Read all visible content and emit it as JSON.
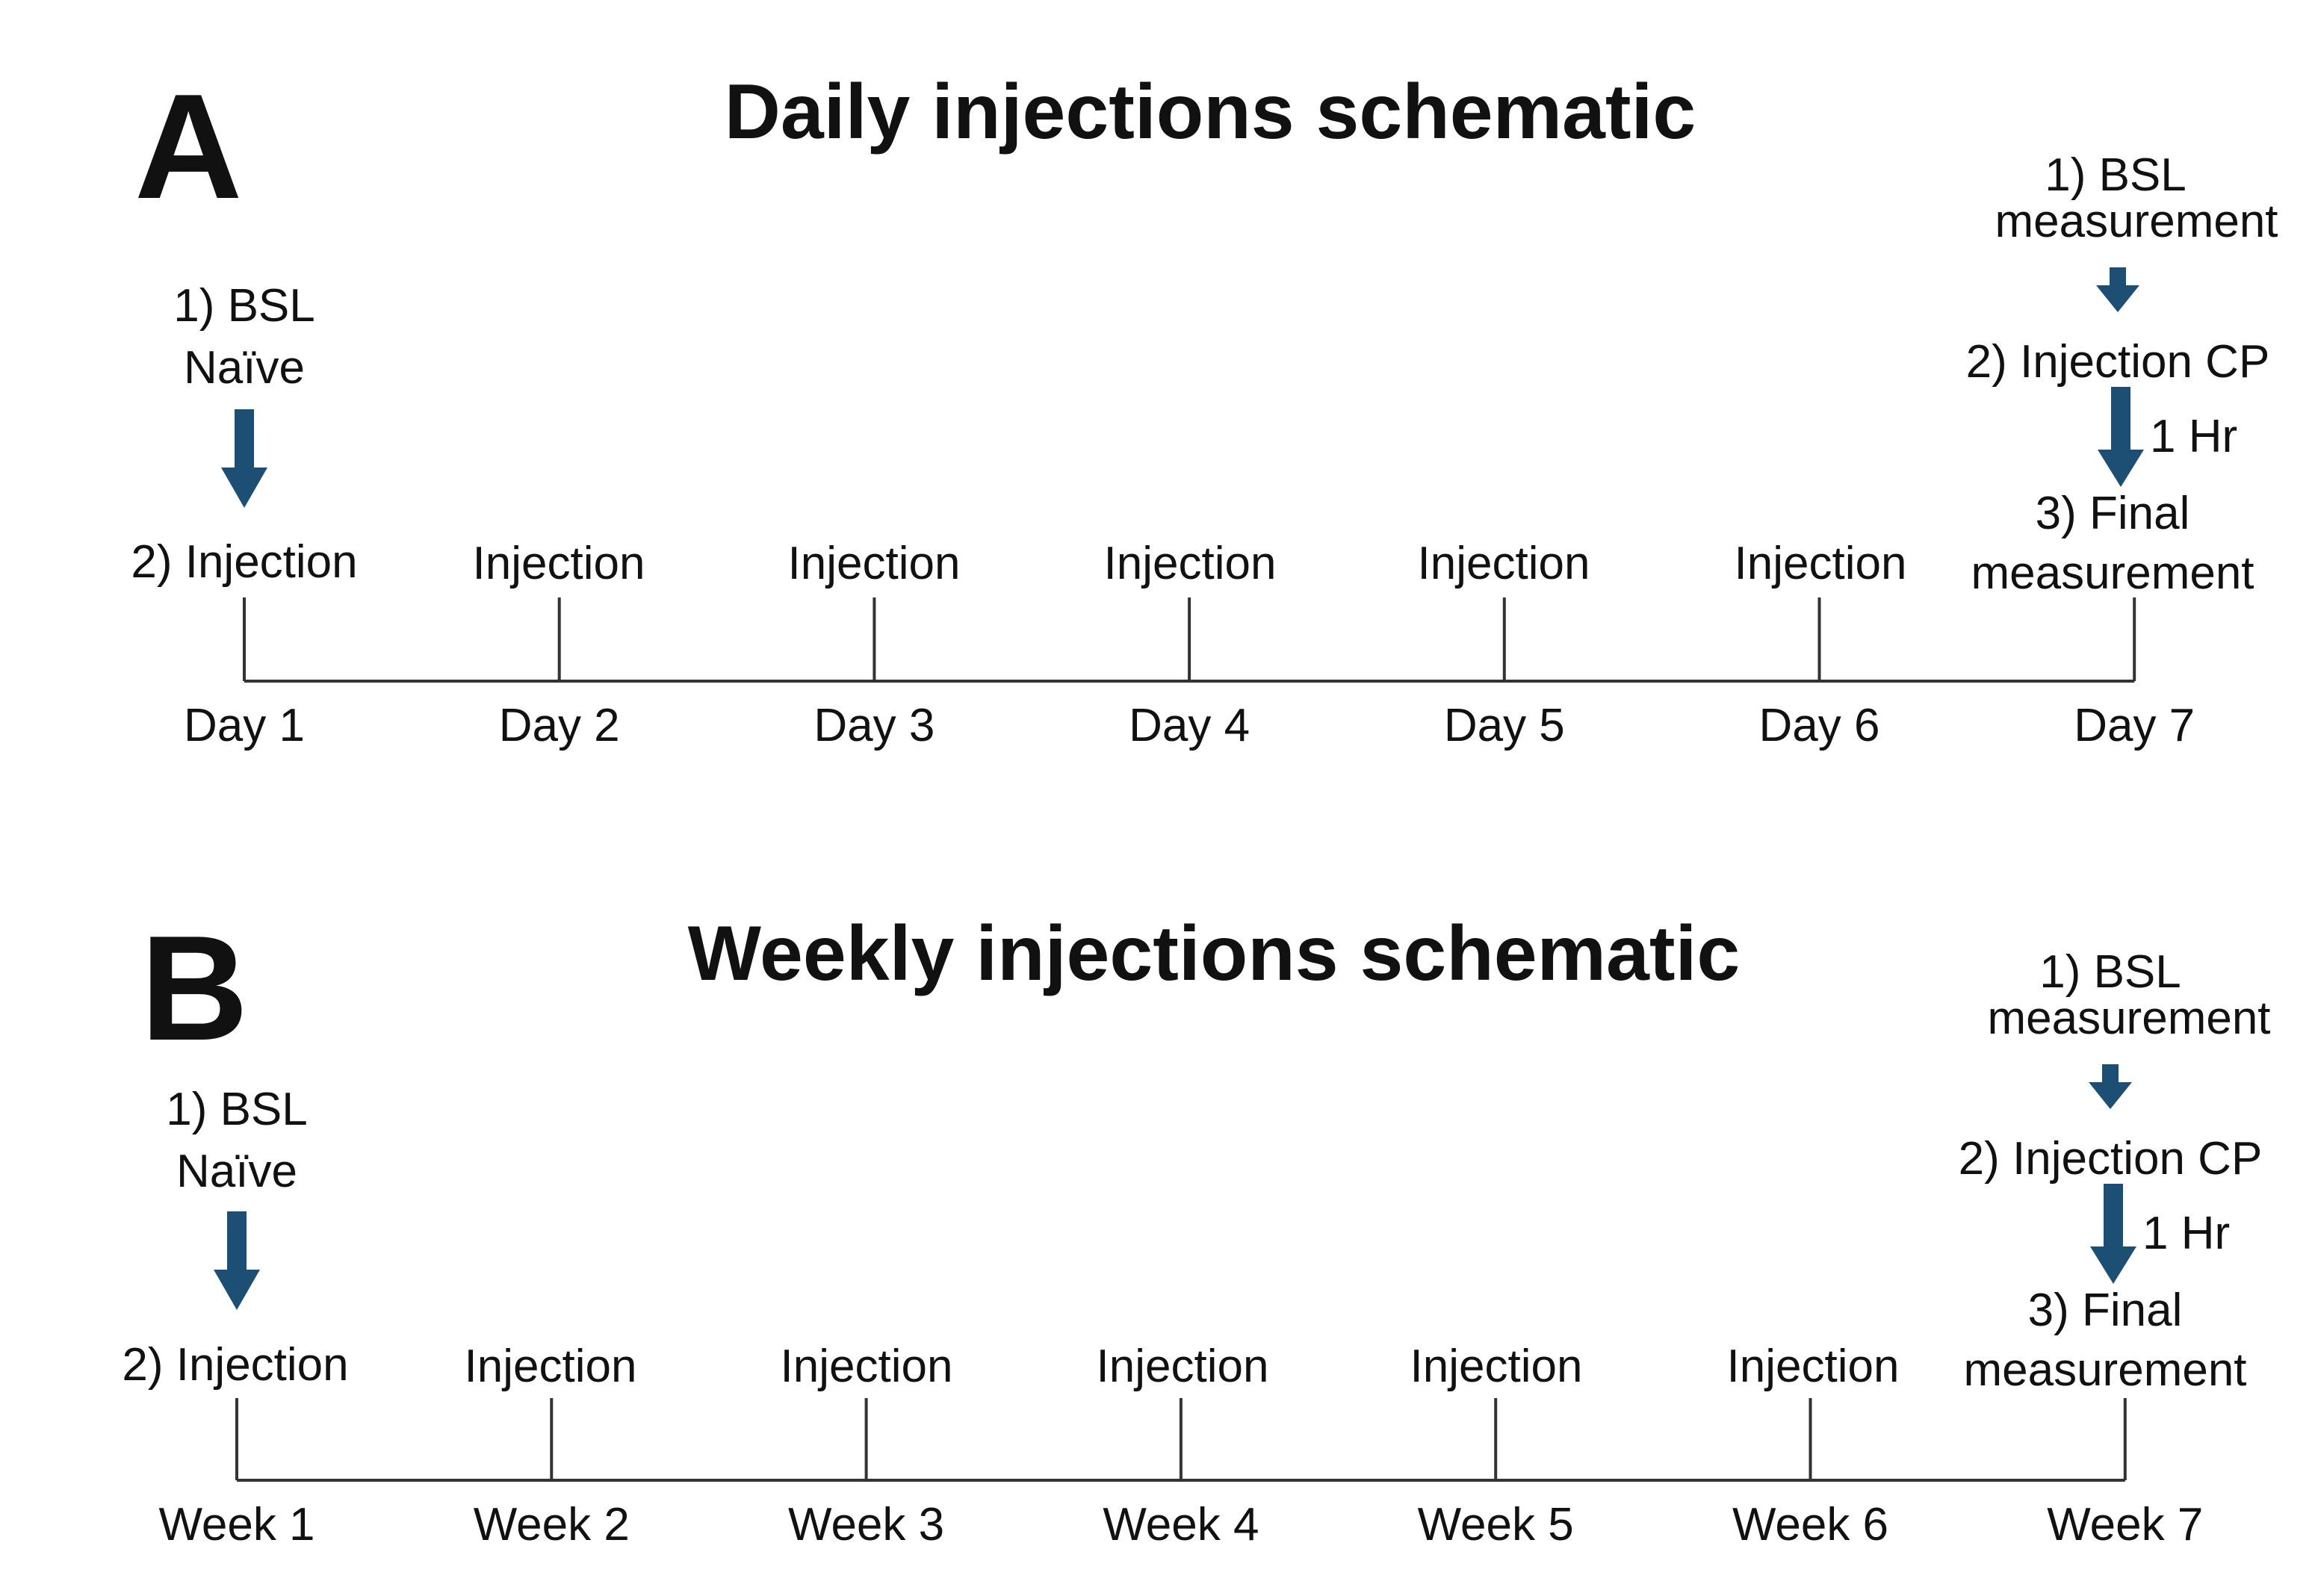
{
  "colors": {
    "arrow": "#1d4e73",
    "line": "#333333",
    "text": "#111111"
  },
  "panels": [
    {
      "letter": "A",
      "title": "Daily injections schematic",
      "start_note": [
        "1) BSL",
        "Naïve"
      ],
      "start_label": "2) Injection",
      "event_label": "Injection",
      "end_steps": {
        "step1": [
          "1) BSL",
          "measurement"
        ],
        "step2": "2) Injection CP",
        "interval": "1 Hr",
        "step3": [
          "3) Final",
          "measurement"
        ]
      },
      "ticks": [
        "Day 1",
        "Day 2",
        "Day 3",
        "Day 4",
        "Day 5",
        "Day 6",
        "Day 7"
      ]
    },
    {
      "letter": "B",
      "title": "Weekly injections schematic",
      "start_note": [
        "1) BSL",
        "Naïve"
      ],
      "start_label": "2) Injection",
      "event_label": "Injection",
      "end_steps": {
        "step1": [
          "1) BSL",
          "measurement"
        ],
        "step2": "2) Injection CP",
        "interval": "1 Hr",
        "step3": [
          "3) Final",
          "measurement"
        ]
      },
      "ticks": [
        "Week 1",
        "Week 2",
        "Week 3",
        "Week 4",
        "Week 5",
        "Week 6",
        "Week 7"
      ]
    }
  ]
}
